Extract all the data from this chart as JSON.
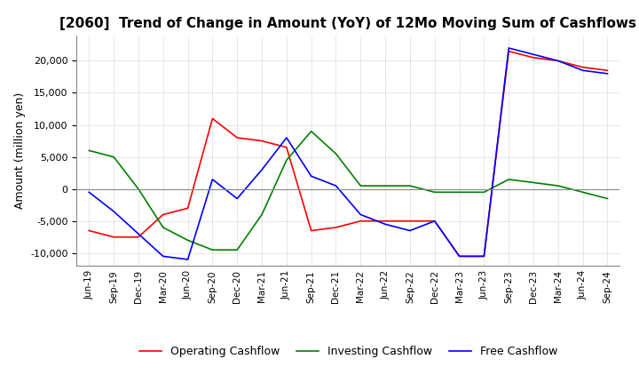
{
  "title": "[2060]  Trend of Change in Amount (YoY) of 12Mo Moving Sum of Cashflows",
  "ylabel": "Amount (million yen)",
  "x_labels": [
    "Jun-19",
    "Sep-19",
    "Dec-19",
    "Mar-20",
    "Jun-20",
    "Sep-20",
    "Dec-20",
    "Mar-21",
    "Jun-21",
    "Sep-21",
    "Dec-21",
    "Mar-22",
    "Jun-22",
    "Sep-22",
    "Dec-22",
    "Mar-23",
    "Jun-23",
    "Sep-23",
    "Dec-23",
    "Mar-24",
    "Jun-24",
    "Sep-24"
  ],
  "operating": [
    -6500,
    -7500,
    -7500,
    -4000,
    -3000,
    11000,
    8000,
    7500,
    6500,
    -6500,
    -6000,
    -5000,
    -5000,
    -5000,
    -5000,
    -10500,
    -10500,
    21500,
    20500,
    20000,
    19000,
    18500
  ],
  "investing": [
    6000,
    5000,
    0,
    -6000,
    -8000,
    -9500,
    -9500,
    -4000,
    4500,
    9000,
    5500,
    500,
    500,
    500,
    -500,
    -500,
    -500,
    1500,
    1000,
    500,
    -500,
    -1500
  ],
  "free": [
    -500,
    -3500,
    -7000,
    -10500,
    -11000,
    1500,
    -1500,
    3000,
    8000,
    2000,
    500,
    -4000,
    -5500,
    -6500,
    -5000,
    -10500,
    -10500,
    22000,
    21000,
    20000,
    18500,
    18000
  ],
  "operating_color": "#ff0000",
  "investing_color": "#008000",
  "free_color": "#0000ff",
  "ylim": [
    -12000,
    24000
  ],
  "yticks": [
    -10000,
    -5000,
    0,
    5000,
    10000,
    15000,
    20000
  ],
  "background_color": "#ffffff",
  "title_fontsize": 11,
  "legend_labels": [
    "Operating Cashflow",
    "Investing Cashflow",
    "Free Cashflow"
  ]
}
